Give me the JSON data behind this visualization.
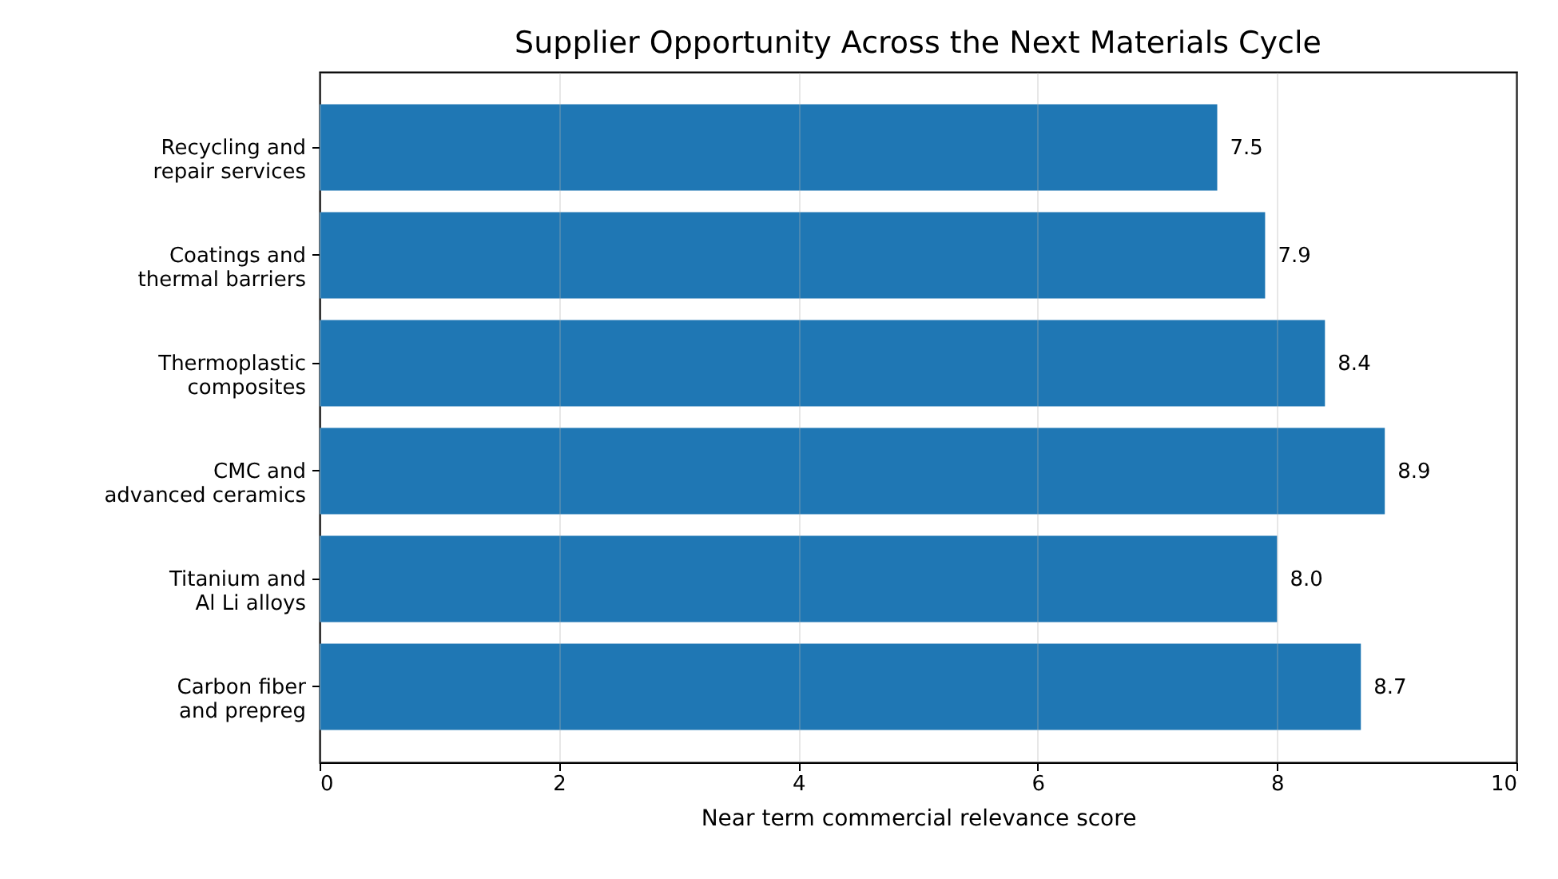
{
  "chart_data": {
    "type": "bar",
    "orientation": "horizontal",
    "title": "Supplier Opportunity Across the Next Materials Cycle",
    "xlabel": "Near term commercial relevance score",
    "categories": [
      "Recycling and\nrepair services",
      "Coatings and\nthermal barriers",
      "Thermoplastic\ncomposites",
      "CMC and\nadvanced ceramics",
      "Titanium and\nAl Li alloys",
      "Carbon fiber\nand prepreg"
    ],
    "values": [
      7.5,
      7.9,
      8.4,
      8.9,
      8.0,
      8.7
    ],
    "value_labels": [
      "7.5",
      "7.9",
      "8.4",
      "8.9",
      "8.0",
      "8.7"
    ],
    "color": "#1f77b4",
    "xlim": [
      0,
      10
    ],
    "xticks": [
      0,
      2,
      4,
      6,
      8,
      10
    ],
    "grid": "x"
  }
}
